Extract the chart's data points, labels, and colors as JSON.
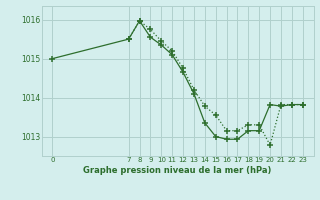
{
  "title": "Graphe pression niveau de la mer (hPa)",
  "background_color": "#d4eeed",
  "grid_color": "#b0d0cc",
  "line_color": "#2d6e2d",
  "ylim": [
    1012.5,
    1016.35
  ],
  "yticks": [
    1013,
    1014,
    1015,
    1016
  ],
  "series1_x": [
    0,
    7,
    8,
    9,
    10,
    11,
    12,
    13,
    14,
    15,
    16,
    17,
    18,
    19,
    20,
    21,
    22,
    23
  ],
  "series1_y": [
    1015.0,
    1015.5,
    1015.97,
    1015.55,
    1015.35,
    1015.1,
    1014.65,
    1014.1,
    1013.35,
    1013.0,
    1012.93,
    1012.93,
    1013.15,
    1013.15,
    1013.82,
    1013.78,
    1013.82,
    1013.82
  ],
  "series2_x": [
    7,
    8,
    9,
    10,
    11,
    12,
    13,
    14,
    15,
    16,
    17,
    18,
    19,
    20,
    21,
    22,
    23
  ],
  "series2_y": [
    1015.5,
    1015.97,
    1015.75,
    1015.45,
    1015.2,
    1014.75,
    1014.2,
    1013.78,
    1013.55,
    1013.15,
    1013.15,
    1013.3,
    1013.3,
    1012.78,
    1013.82,
    1013.82,
    1013.82
  ],
  "xticks": [
    0,
    7,
    8,
    9,
    10,
    11,
    12,
    13,
    14,
    15,
    16,
    17,
    18,
    19,
    20,
    21,
    22,
    23
  ],
  "figsize": [
    3.2,
    2.0
  ],
  "dpi": 100
}
